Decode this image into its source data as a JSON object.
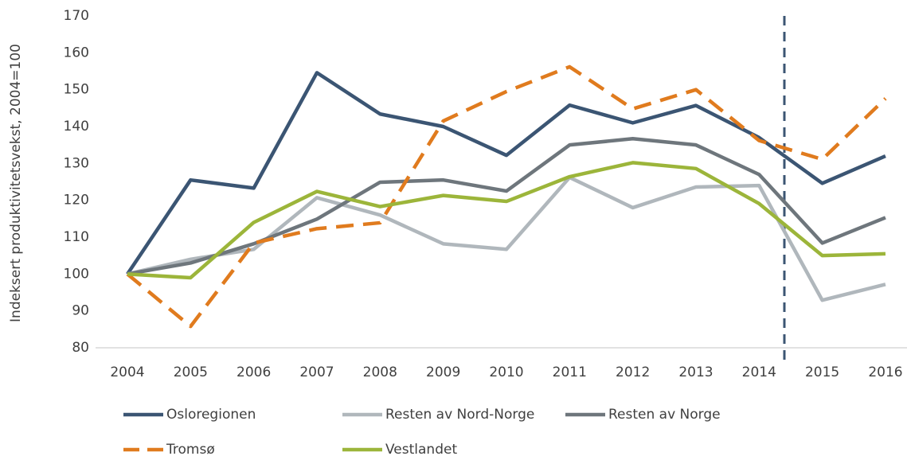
{
  "chart_data": {
    "type": "line",
    "y_label": "Indeksert produktivitetsvekst, 2004=100",
    "categories": [
      "2004",
      "2005",
      "2006",
      "2007",
      "2008",
      "2009",
      "2010",
      "2011",
      "2012",
      "2013",
      "2014",
      "2015",
      "2016"
    ],
    "ylim": [
      80,
      170
    ],
    "yticks": [
      80,
      90,
      100,
      110,
      120,
      130,
      140,
      150,
      160,
      170
    ],
    "grid": false,
    "legend": "bottom",
    "series": [
      {
        "name": "Osloregionen",
        "color": "#3b5573",
        "dashed": false,
        "values": [
          100,
          125.5,
          123.3,
          154.6,
          143.4,
          140,
          132.2,
          145.8,
          141,
          145.7,
          137,
          124.6,
          132
        ]
      },
      {
        "name": "Resten av Nord-Norge",
        "color": "#b0b7bc",
        "dashed": false,
        "values": [
          100,
          104,
          106.7,
          120.7,
          116,
          108.2,
          106.7,
          126.2,
          118,
          123.6,
          124,
          92.9,
          97.2
        ]
      },
      {
        "name": "Resten av Norge",
        "color": "#6e767c",
        "dashed": false,
        "values": [
          100,
          103,
          108.2,
          114.9,
          124.9,
          125.5,
          122.5,
          135,
          136.7,
          135,
          127,
          108.4,
          115.3
        ]
      },
      {
        "name": "Tromsø",
        "color": "#e07b1e",
        "dashed": true,
        "values": [
          100,
          85.8,
          108.4,
          112.3,
          113.9,
          141.5,
          149.5,
          156.2,
          144.8,
          150,
          136.2,
          131.1,
          147.6
        ]
      },
      {
        "name": "Vestlandet",
        "color": "#9cb53a",
        "dashed": false,
        "values": [
          100,
          99,
          114,
          122.4,
          118.3,
          121.3,
          119.7,
          126.4,
          130.2,
          128.6,
          119.1,
          105,
          105.5
        ]
      }
    ]
  }
}
